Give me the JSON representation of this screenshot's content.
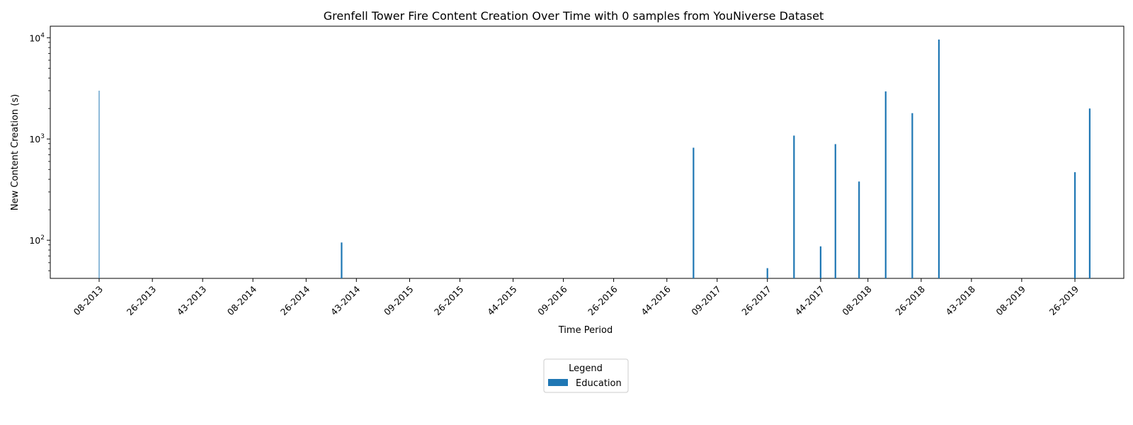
{
  "chart_data": {
    "type": "bar",
    "title": "Grenfell Tower Fire Content Creation Over Time with 0 samples from YouNiverse Dataset",
    "xlabel": "Time Period",
    "ylabel": "New Content Creation (s)",
    "y_scale": "log",
    "ylim": [
      42,
      13000
    ],
    "y_ticks": [
      {
        "value": 100,
        "base": "10",
        "exp": "2"
      },
      {
        "value": 1000,
        "base": "10",
        "exp": "3"
      },
      {
        "value": 10000,
        "base": "10",
        "exp": "4"
      }
    ],
    "x_tick_labels": [
      "08-2013",
      "26-2013",
      "43-2013",
      "08-2014",
      "26-2014",
      "43-2014",
      "09-2015",
      "26-2015",
      "44-2015",
      "09-2016",
      "26-2016",
      "44-2016",
      "09-2017",
      "26-2017",
      "44-2017",
      "08-2018",
      "26-2018",
      "43-2018",
      "08-2019",
      "26-2019"
    ],
    "grid": false,
    "legend": {
      "title": "Legend",
      "position": "bottom-center"
    },
    "series": [
      {
        "name": "Education",
        "color": "#1f77b4",
        "points": [
          {
            "x": "08-2013",
            "y": 3000
          },
          {
            "x": "38-2014",
            "y": 95
          },
          {
            "x": "53-2016",
            "y": 820
          },
          {
            "x": "26-2017",
            "y": 53
          },
          {
            "x": "35-2017",
            "y": 1080
          },
          {
            "x": "44-2017",
            "y": 87
          },
          {
            "x": "49-2017",
            "y": 890
          },
          {
            "x": "05-2018",
            "y": 380
          },
          {
            "x": "14-2018",
            "y": 2950
          },
          {
            "x": "23-2018",
            "y": 1800
          },
          {
            "x": "32-2018",
            "y": 9600
          },
          {
            "x": "26-2019",
            "y": 470
          },
          {
            "x": "31-2019",
            "y": 2000
          }
        ]
      }
    ]
  }
}
